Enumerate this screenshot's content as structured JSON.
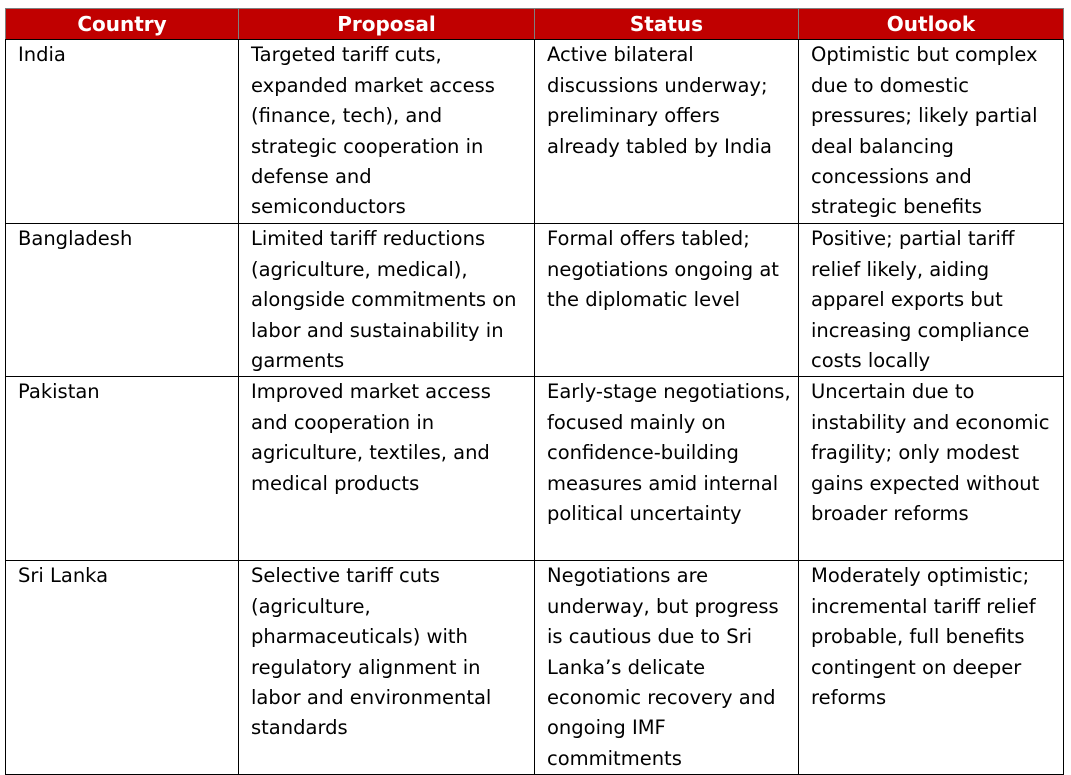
{
  "headers": {
    "country": "Country",
    "proposal": "Proposal",
    "status": "Status",
    "outlook": "Outlook"
  },
  "rows": [
    {
      "country": "India",
      "proposal": "Targeted tariff cuts, expanded market access (finance, tech), and strategic cooperation in defense and semiconductors",
      "status": "Active bilateral discussions underway; preliminary offers already tabled by India",
      "outlook": "Optimistic but complex due to domestic pressures; likely partial deal balancing concessions and strategic benefits"
    },
    {
      "country": "Bangladesh",
      "proposal": "Limited tariff reductions (agriculture, medical), alongside commitments on labor and sustainability in garments",
      "status": "Formal offers tabled; negotiations ongoing at the diplomatic level",
      "outlook": "Positive; partial tariff relief likely, aiding apparel exports but increasing compliance costs locally"
    },
    {
      "country": "Pakistan",
      "proposal": "Improved market access and cooperation in agriculture, textiles, and medical products",
      "status": "Early-stage negotiations, focused mainly on confidence-building measures amid internal political uncertainty",
      "outlook": "Uncertain due to instability and economic fragility; only modest gains expected without broader reforms"
    },
    {
      "country": "Sri Lanka",
      "proposal": "Selective tariff cuts (agriculture, pharmaceuticals) with regulatory alignment in labor and environmental standards",
      "status": "Negotiations are underway, but progress is cautious due to Sri Lanka’s delicate economic recovery and ongoing IMF commitments",
      "outlook": "Moderately optimistic; incremental tariff relief probable, full benefits contingent on deeper reforms"
    }
  ],
  "colors": {
    "header_background": "#c00000",
    "header_text": "#ffffff",
    "border": "#000000",
    "body_text": "#000000"
  }
}
